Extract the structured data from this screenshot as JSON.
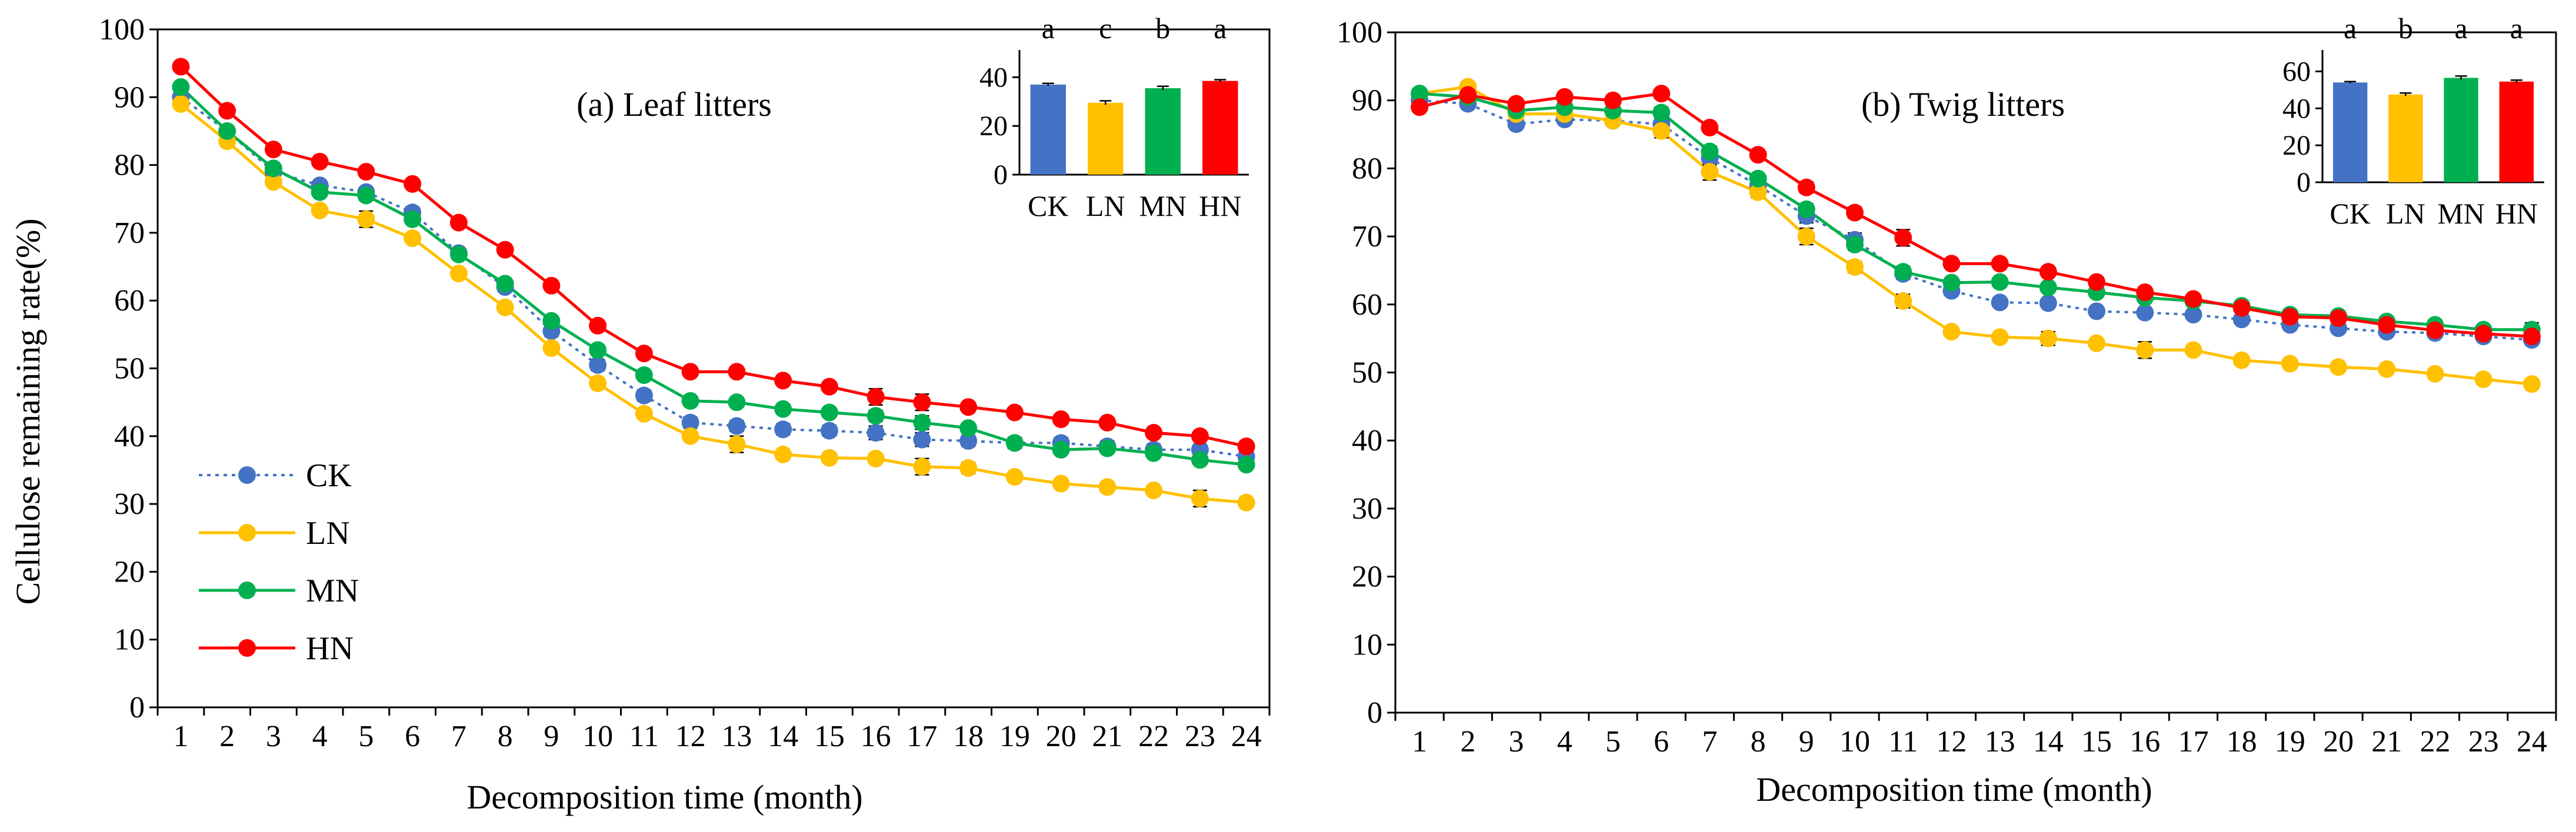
{
  "chart_data": [
    {
      "type": "line",
      "title": "(a) Leaf litters",
      "xlabel": "Decomposition time (month)",
      "ylabel": "Cellulose remaining rate(%)",
      "ylim": [
        0,
        100
      ],
      "yticks": [
        0,
        10,
        20,
        30,
        40,
        50,
        60,
        70,
        80,
        90,
        100
      ],
      "categories": [
        "1",
        "2",
        "3",
        "4",
        "5",
        "6",
        "7",
        "8",
        "9",
        "10",
        "11",
        "12",
        "13",
        "14",
        "15",
        "16",
        "17",
        "18",
        "19",
        "20",
        "21",
        "22",
        "23",
        "24"
      ],
      "legend_position": "bottom-left",
      "series": [
        {
          "name": "CK",
          "color": "#4472C4",
          "dashed": true,
          "values": [
            90.0,
            85.0,
            79.0,
            77.0,
            76.0,
            73.0,
            67.0,
            62.0,
            55.5,
            50.5,
            46.0,
            42.0,
            41.5,
            41.0,
            40.8,
            40.5,
            39.5,
            39.3,
            39.0,
            39.0,
            38.5,
            38.0,
            38.0,
            37.0
          ],
          "errors": [
            0.5,
            0.5,
            0.5,
            0.6,
            0.6,
            0.8,
            0.6,
            0.6,
            0.8,
            0.8,
            0.8,
            0.8,
            0.8,
            0.8,
            0.8,
            1.0,
            1.0,
            0.8,
            0.8,
            0.8,
            0.8,
            0.8,
            0.8,
            0.8
          ]
        },
        {
          "name": "LN",
          "color": "#FFC000",
          "dashed": false,
          "values": [
            89.0,
            83.5,
            77.5,
            73.3,
            72.0,
            69.2,
            64.0,
            59.0,
            53.0,
            47.8,
            43.3,
            40.0,
            38.8,
            37.3,
            36.8,
            36.7,
            35.5,
            35.3,
            34.0,
            33.0,
            32.5,
            32.0,
            30.8,
            30.2
          ],
          "errors": [
            0.5,
            0.5,
            0.5,
            0.5,
            1.2,
            0.6,
            0.6,
            0.6,
            0.6,
            0.6,
            0.6,
            0.6,
            1.2,
            0.6,
            0.6,
            0.6,
            1.2,
            0.8,
            0.6,
            0.6,
            0.6,
            0.6,
            1.2,
            0.6
          ]
        },
        {
          "name": "MN",
          "color": "#00B050",
          "dashed": false,
          "values": [
            91.5,
            85.0,
            79.5,
            76.0,
            75.5,
            72.0,
            66.8,
            62.5,
            57.0,
            52.7,
            49.0,
            45.2,
            45.0,
            44.0,
            43.5,
            43.0,
            42.0,
            41.2,
            39.0,
            38.0,
            38.2,
            37.5,
            36.5,
            35.8
          ],
          "errors": [
            0.5,
            0.5,
            0.5,
            0.6,
            0.6,
            0.6,
            0.6,
            0.6,
            0.6,
            0.6,
            0.6,
            0.6,
            0.6,
            0.6,
            0.6,
            0.8,
            1.0,
            0.6,
            0.8,
            0.6,
            0.6,
            0.6,
            0.6,
            0.6
          ]
        },
        {
          "name": "HN",
          "color": "#FF0000",
          "dashed": false,
          "values": [
            94.5,
            88.0,
            82.3,
            80.5,
            79.0,
            77.2,
            71.5,
            67.5,
            62.2,
            56.3,
            52.2,
            49.5,
            49.5,
            48.2,
            47.3,
            45.8,
            45.0,
            44.3,
            43.5,
            42.5,
            42.0,
            40.5,
            40.0,
            38.5
          ],
          "errors": [
            0.5,
            0.5,
            0.5,
            0.5,
            0.5,
            0.6,
            0.6,
            0.6,
            0.6,
            0.6,
            0.6,
            0.6,
            0.6,
            0.6,
            0.6,
            1.2,
            1.2,
            0.6,
            0.6,
            0.6,
            0.6,
            0.6,
            0.6,
            0.6
          ]
        }
      ],
      "inset": {
        "type": "bar",
        "categories": [
          "CK",
          "LN",
          "MN",
          "HN"
        ],
        "values": [
          37.0,
          29.5,
          35.5,
          38.5
        ],
        "errors": [
          0.5,
          0.8,
          0.8,
          0.5
        ],
        "letters": [
          "a",
          "c",
          "b",
          "a"
        ],
        "colors": [
          "#4472C4",
          "#FFC000",
          "#00B050",
          "#FF0000"
        ],
        "ylim": [
          0,
          50
        ],
        "yticks": [
          0,
          20,
          40
        ]
      }
    },
    {
      "type": "line",
      "title": "(b) Twig litters",
      "xlabel": "Decomposition time (month)",
      "ylabel": "",
      "ylim": [
        0,
        100
      ],
      "yticks": [
        0,
        10,
        20,
        30,
        40,
        50,
        60,
        70,
        80,
        90,
        100
      ],
      "categories": [
        "1",
        "2",
        "3",
        "4",
        "5",
        "6",
        "7",
        "8",
        "9",
        "10",
        "11",
        "12",
        "13",
        "14",
        "15",
        "16",
        "17",
        "18",
        "19",
        "20",
        "21",
        "22",
        "23",
        "24"
      ],
      "series": [
        {
          "name": "CK",
          "color": "#4472C4",
          "dashed": true,
          "values": [
            90.0,
            89.5,
            86.5,
            87.2,
            87.0,
            86.5,
            81.5,
            77.5,
            73.0,
            69.5,
            64.5,
            62.0,
            60.3,
            60.2,
            59.0,
            58.8,
            58.5,
            57.8,
            57.0,
            56.5,
            56.0,
            55.8,
            55.3,
            54.8
          ],
          "errors": [
            0.6,
            0.6,
            0.6,
            0.6,
            0.6,
            0.8,
            1.0,
            0.6,
            1.0,
            1.0,
            0.8,
            0.6,
            0.6,
            0.6,
            0.6,
            0.6,
            0.6,
            0.6,
            0.6,
            0.6,
            0.6,
            0.6,
            0.6,
            0.6
          ]
        },
        {
          "name": "LN",
          "color": "#FFC000",
          "dashed": false,
          "values": [
            91.0,
            92.0,
            88.0,
            88.0,
            87.0,
            85.5,
            79.5,
            76.5,
            70.0,
            65.5,
            60.5,
            56.0,
            55.2,
            55.0,
            54.3,
            53.3,
            53.3,
            51.8,
            51.3,
            50.8,
            50.5,
            49.8,
            49.0,
            48.3
          ],
          "errors": [
            0.6,
            0.6,
            0.6,
            0.6,
            0.6,
            1.0,
            1.2,
            0.8,
            1.2,
            0.8,
            1.0,
            0.6,
            0.6,
            1.0,
            0.6,
            1.2,
            0.6,
            0.6,
            0.6,
            0.6,
            0.6,
            0.6,
            0.6,
            0.6
          ]
        },
        {
          "name": "MN",
          "color": "#00B050",
          "dashed": false,
          "values": [
            91.0,
            90.5,
            88.5,
            89.0,
            88.5,
            88.2,
            82.5,
            78.5,
            74.0,
            68.8,
            64.8,
            63.2,
            63.3,
            62.5,
            61.8,
            61.0,
            60.5,
            59.8,
            58.5,
            58.3,
            57.5,
            57.0,
            56.3,
            56.3
          ],
          "errors": [
            0.6,
            0.6,
            0.6,
            0.6,
            0.6,
            0.8,
            0.8,
            0.6,
            0.8,
            0.8,
            0.8,
            0.6,
            0.6,
            0.6,
            0.6,
            0.6,
            0.6,
            0.6,
            0.6,
            0.6,
            0.6,
            0.6,
            0.6,
            1.0
          ]
        },
        {
          "name": "HN",
          "color": "#FF0000",
          "dashed": false,
          "values": [
            89.0,
            90.8,
            89.5,
            90.5,
            90.0,
            91.0,
            86.0,
            82.0,
            77.2,
            73.5,
            69.8,
            66.0,
            66.0,
            64.8,
            63.3,
            61.8,
            60.8,
            59.5,
            58.2,
            58.0,
            57.0,
            56.2,
            55.7,
            55.3
          ],
          "errors": [
            0.6,
            0.6,
            0.6,
            0.6,
            0.6,
            0.6,
            0.6,
            0.6,
            0.8,
            0.8,
            1.2,
            0.6,
            0.6,
            0.6,
            0.6,
            0.6,
            0.6,
            0.6,
            0.6,
            0.6,
            0.6,
            0.6,
            0.6,
            0.8
          ]
        }
      ],
      "inset": {
        "type": "bar",
        "categories": [
          "CK",
          "LN",
          "MN",
          "HN"
        ],
        "values": [
          54.0,
          47.5,
          56.5,
          54.5
        ],
        "errors": [
          0.5,
          0.8,
          1.0,
          0.8
        ],
        "letters": [
          "a",
          "b",
          "a",
          "a"
        ],
        "colors": [
          "#4472C4",
          "#FFC000",
          "#00B050",
          "#FF0000"
        ],
        "ylim": [
          0,
          70
        ],
        "yticks": [
          0,
          20,
          40,
          60
        ]
      }
    }
  ]
}
